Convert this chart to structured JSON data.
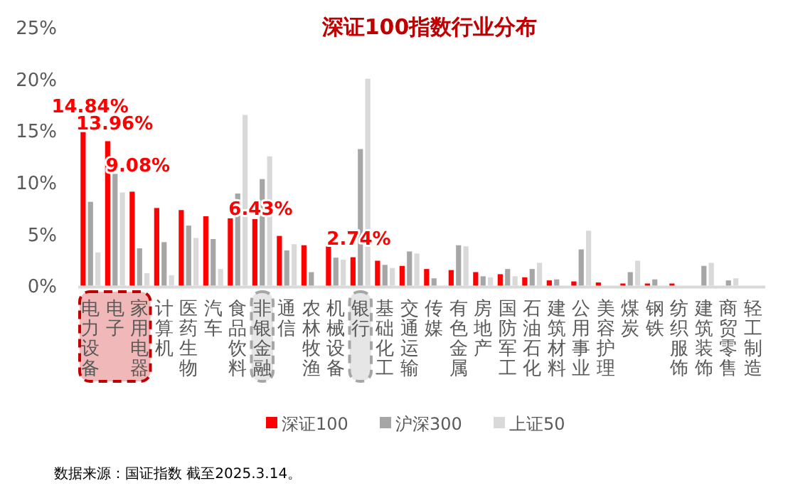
{
  "chart_data": {
    "type": "bar",
    "title": "深证100指数行业分布",
    "categories": [
      "电力设备",
      "电子",
      "家用电器",
      "计算机",
      "医药生物",
      "汽车",
      "食品饮料",
      "非银金融",
      "通信",
      "农林牧渔",
      "机械设备",
      "银行",
      "基础化工",
      "交通运输",
      "传媒",
      "有色金属",
      "房地产",
      "国防军工",
      "石油石化",
      "建筑材料",
      "公用事业",
      "美容护理",
      "煤炭",
      "钢铁",
      "纺织服饰",
      "建筑装饰",
      "商贸零售",
      "轻工制造"
    ],
    "series": [
      {
        "name": "深证100",
        "color": "#ff0000",
        "values": [
          14.84,
          13.96,
          9.08,
          7.5,
          7.3,
          6.7,
          6.5,
          6.43,
          4.8,
          3.9,
          3.8,
          2.74,
          2.4,
          1.9,
          1.6,
          1.5,
          1.3,
          1.1,
          0.8,
          0.5,
          0.4,
          0.3,
          0.2,
          0.2,
          0.2,
          0,
          0,
          0
        ],
        "value_labels": [
          "14.84%",
          "13.96%",
          "9.08%",
          null,
          null,
          null,
          null,
          "6.43%",
          null,
          null,
          null,
          "2.74%",
          null,
          null,
          null,
          null,
          null,
          null,
          null,
          null,
          null,
          null,
          null,
          null,
          null,
          null,
          null,
          null
        ]
      },
      {
        "name": "沪深300",
        "color": "#a6a6a6",
        "values": [
          8.1,
          10.8,
          3.6,
          4.2,
          5.8,
          4.5,
          8.9,
          10.3,
          3.4,
          1.3,
          2.7,
          13.2,
          2.0,
          3.3,
          0.7,
          3.9,
          0.9,
          1.6,
          1.6,
          0.6,
          3.5,
          0,
          1.3,
          0.6,
          0,
          1.9,
          0.5,
          0
        ]
      },
      {
        "name": "上证50",
        "color": "#d9d9d9",
        "values": [
          3.2,
          9.0,
          1.2,
          1.0,
          4.6,
          1.6,
          16.5,
          12.5,
          4.0,
          0,
          2.5,
          20.0,
          1.7,
          3.1,
          0,
          3.8,
          0.8,
          0.9,
          2.2,
          0,
          5.3,
          0,
          2.4,
          0,
          0,
          2.2,
          0.7,
          0
        ]
      }
    ],
    "ylim": [
      0,
      25
    ],
    "yticks": [
      {
        "value": 0,
        "label": "0%"
      },
      {
        "value": 5,
        "label": "5%"
      },
      {
        "value": 10,
        "label": "10%"
      },
      {
        "value": 15,
        "label": "15%"
      },
      {
        "value": 20,
        "label": "20%"
      },
      {
        "value": 25,
        "label": "25%"
      }
    ],
    "grid": false,
    "legend": "bottom",
    "annotations": [
      "数据来源：国证指数 截至2025.3.14。"
    ]
  }
}
